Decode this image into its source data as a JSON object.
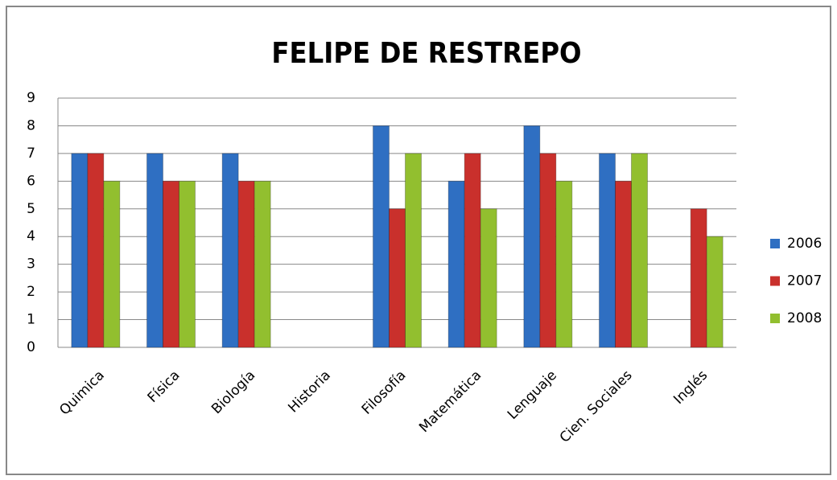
{
  "chart_data": {
    "type": "bar",
    "title": "FELIPE DE RESTREPO",
    "categories": [
      "Quimica",
      "Física",
      "Biología",
      "Historia",
      "Filosofía",
      "Matemática",
      "Lenguaje",
      "Cien. Sociales",
      "Inglés"
    ],
    "series": [
      {
        "name": "2006",
        "color": "#2f6fc2",
        "values": [
          7,
          7,
          7,
          null,
          8,
          6,
          8,
          7,
          null
        ]
      },
      {
        "name": "2007",
        "color": "#c9302c",
        "values": [
          7,
          6,
          6,
          null,
          5,
          7,
          7,
          6,
          5
        ]
      },
      {
        "name": "2008",
        "color": "#92bf2f",
        "values": [
          6,
          6,
          6,
          null,
          7,
          5,
          6,
          7,
          4
        ]
      }
    ],
    "ylim": [
      0,
      9
    ],
    "yticks": [
      0,
      1,
      2,
      3,
      4,
      5,
      6,
      7,
      8,
      9
    ],
    "grid": true,
    "legend": "right"
  }
}
